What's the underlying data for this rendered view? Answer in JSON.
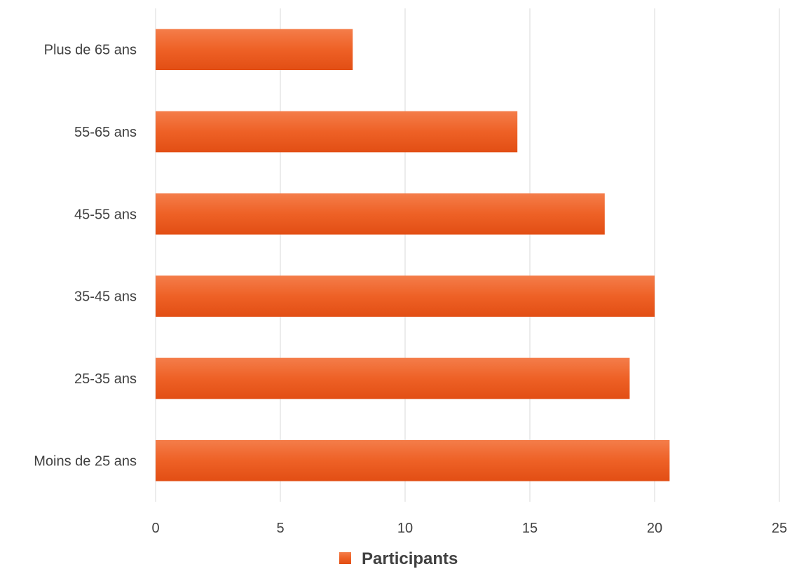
{
  "chart_data": {
    "type": "bar",
    "orientation": "horizontal",
    "categories": [
      "Plus de 65 ans",
      "55-65 ans",
      "45-55 ans",
      "35-45 ans",
      "25-35 ans",
      "Moins de 25 ans"
    ],
    "series": [
      {
        "name": "Participants",
        "values": [
          7.9,
          14.5,
          18.0,
          20.0,
          19.0,
          20.6
        ],
        "color": "#ED5E1E"
      }
    ],
    "xlim": [
      0,
      25
    ],
    "xticks": [
      "0",
      "5",
      "10",
      "15",
      "20",
      "25"
    ],
    "grid": true,
    "legend_position": "bottom"
  }
}
